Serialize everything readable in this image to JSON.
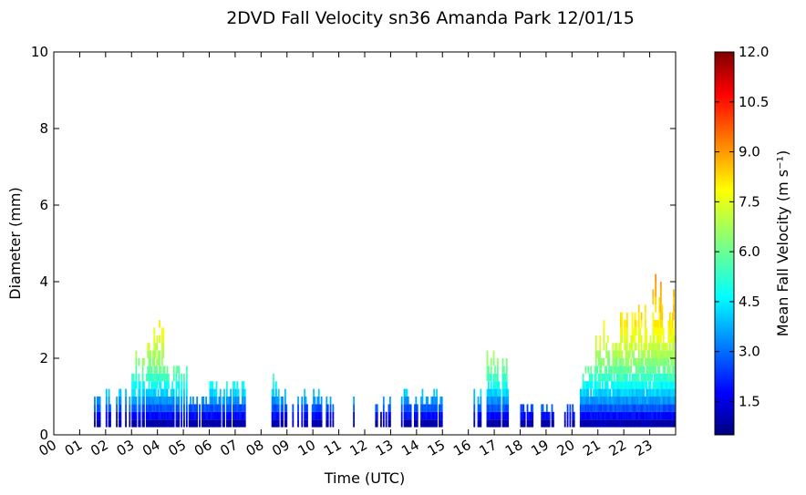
{
  "chart_data": {
    "type": "heatmap",
    "title": "2DVD Fall Velocity sn36 Amanda Park 12/01/15",
    "xlabel": "Time (UTC)",
    "ylabel": "Diameter (mm)",
    "xlim": [
      0,
      24
    ],
    "ylim": [
      0,
      10
    ],
    "x_ticks": [
      "00",
      "01",
      "02",
      "03",
      "04",
      "05",
      "06",
      "07",
      "08",
      "09",
      "10",
      "11",
      "12",
      "13",
      "14",
      "15",
      "16",
      "17",
      "18",
      "19",
      "20",
      "21",
      "22",
      "23"
    ],
    "y_ticks": [
      "0",
      "2",
      "4",
      "6",
      "8",
      "10"
    ],
    "colorbar": {
      "label": "Mean Fall Velocity (m s⁻¹)",
      "range": [
        0.5,
        12.0
      ],
      "colormap": "jet",
      "ticks": [
        "1.5",
        "3.0",
        "4.5",
        "6.0",
        "7.5",
        "9.0",
        "10.5",
        "12.0"
      ]
    },
    "colors": [
      "#00007f",
      "#0000ff",
      "#007fff",
      "#00ffff",
      "#7fff7f",
      "#ffff00",
      "#ff7f00",
      "#ff0000",
      "#7f0000"
    ],
    "grid": false,
    "diameter_bins_mm": [
      0.3,
      0.5,
      0.7,
      0.9,
      1.1,
      1.3,
      1.5,
      1.7,
      1.9,
      2.1,
      2.3,
      2.5,
      2.7,
      2.9,
      3.1,
      3.3,
      3.5,
      3.7,
      3.9,
      4.1
    ],
    "precip_periods": [
      {
        "start": 1.5,
        "end": 3.0,
        "max_diam": 1.3,
        "density": 0.55
      },
      {
        "start": 3.0,
        "end": 3.6,
        "max_diam": 2.3,
        "density": 0.75
      },
      {
        "start": 3.6,
        "end": 4.3,
        "max_diam": 3.0,
        "density": 0.9
      },
      {
        "start": 4.3,
        "end": 5.2,
        "max_diam": 1.9,
        "density": 0.75
      },
      {
        "start": 5.2,
        "end": 6.0,
        "max_diam": 1.1,
        "density": 0.85
      },
      {
        "start": 6.0,
        "end": 7.4,
        "max_diam": 1.5,
        "density": 0.95
      },
      {
        "start": 8.3,
        "end": 8.9,
        "max_diam": 1.7,
        "density": 0.5
      },
      {
        "start": 8.9,
        "end": 10.9,
        "max_diam": 1.3,
        "density": 0.7
      },
      {
        "start": 11.5,
        "end": 11.7,
        "max_diam": 1.3,
        "density": 0.4
      },
      {
        "start": 12.3,
        "end": 13.0,
        "max_diam": 1.1,
        "density": 0.5
      },
      {
        "start": 13.4,
        "end": 15.0,
        "max_diam": 1.3,
        "density": 0.75
      },
      {
        "start": 16.2,
        "end": 16.5,
        "max_diam": 1.3,
        "density": 0.85
      },
      {
        "start": 16.7,
        "end": 17.6,
        "max_diam": 2.3,
        "density": 0.8
      },
      {
        "start": 18.0,
        "end": 18.6,
        "max_diam": 0.9,
        "density": 0.8
      },
      {
        "start": 18.8,
        "end": 19.5,
        "max_diam": 0.9,
        "density": 0.6
      },
      {
        "start": 19.7,
        "end": 20.3,
        "max_diam": 0.9,
        "density": 0.55
      },
      {
        "start": 20.3,
        "end": 20.9,
        "max_diam": 1.9,
        "density": 1.0
      },
      {
        "start": 20.9,
        "end": 22.0,
        "max_diam": 3.3,
        "density": 1.0
      },
      {
        "start": 22.0,
        "end": 23.0,
        "max_diam": 3.5,
        "density": 1.0
      },
      {
        "start": 23.0,
        "end": 24.0,
        "max_diam": 4.3,
        "density": 1.0
      }
    ]
  }
}
